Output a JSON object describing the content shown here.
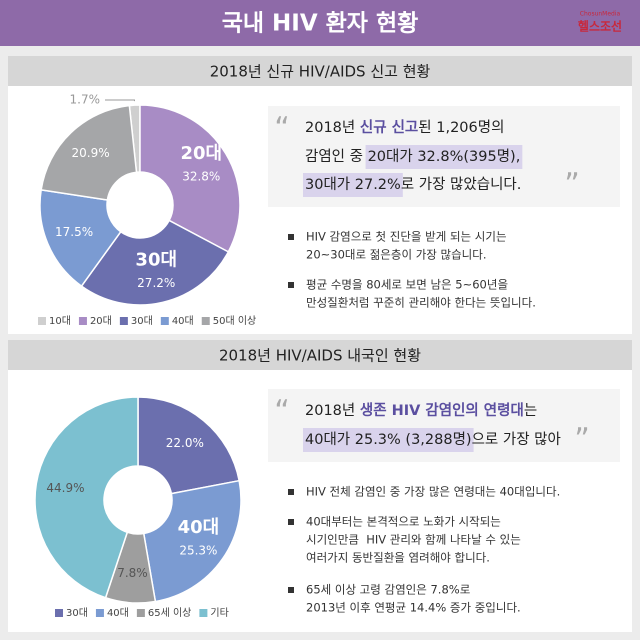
{
  "header": {
    "title": "국내 HIV 환자 현황",
    "logo_small": "ChosunMedia",
    "logo": "헬스조선"
  },
  "chart_data": [
    {
      "type": "pie",
      "donut": true,
      "title": "2018년 신규 HIV/AIDS 신고 현황",
      "categories": [
        "10대",
        "20대",
        "30대",
        "40대",
        "50대 이상"
      ],
      "values": [
        1.7,
        32.8,
        27.2,
        17.5,
        20.9
      ],
      "value_labels": [
        "1.7%",
        "32.8%",
        "27.2%",
        "17.5%",
        "20.9%"
      ],
      "colors": [
        "#cfcfcf",
        "#a88cc5",
        "#6b6fae",
        "#7b9bd2",
        "#a5a6a8"
      ],
      "legend": "bottom"
    },
    {
      "type": "pie",
      "donut": true,
      "title": "2018년 HIV/AIDS 내국인 현황",
      "categories": [
        "30대",
        "40대",
        "65세 이상",
        "기타"
      ],
      "values": [
        22,
        25.3,
        7.8,
        44.9
      ],
      "value_labels": [
        "22.0%",
        "25.3%",
        "7.8%",
        "44.9%"
      ],
      "colors": [
        "#6b6fae",
        "#7b9bd2",
        "#9e9e9e",
        "#7cc0d0"
      ],
      "legend": "bottom"
    }
  ],
  "panels": [
    {
      "quote": [
        [
          {
            "text": "2018년 "
          },
          {
            "text": "신규 신고",
            "mark": "color"
          },
          {
            "text": "된 1,206명의"
          }
        ],
        [
          {
            "text": "감염인 중 "
          },
          {
            "text": "20대가 32.8%(395명),",
            "mark": "box"
          }
        ],
        [
          {
            "text": "30대가 27.2%",
            "mark": "box"
          },
          {
            "text": "로 가장 많았습니다."
          }
        ]
      ],
      "bullets": [
        [
          "HIV 감염으로 첫 진단을 받게 되는 시기는",
          "20~30대로 젊은층이 가장 많습니다."
        ],
        [
          "평균 수명을 80세로 보면 남은 5~60년을",
          "만성질환처럼 꾸준히 관리해야 한다는 뜻입니다."
        ]
      ]
    },
    {
      "quote": [
        [
          {
            "text": "2018년 "
          },
          {
            "text": "생존 HIV 감염인의 연령대",
            "mark": "color"
          },
          {
            "text": "는"
          }
        ],
        [
          {
            "text": "40대가 25.3% (3,288명)",
            "mark": "box"
          },
          {
            "text": "으로 가장 많아"
          }
        ]
      ],
      "bullets": [
        [
          "HIV 전체 감염인 중 가장 많은 연령대는 40대입니다."
        ],
        [
          "40대부터는 본격적으로 노화가 시작되는",
          "시기인만큼  HIV 관리와 함께 나타날 수 있는",
          "여러가지 동반질환을 염려해야 합니다."
        ],
        [
          "65세 이상 고령 감염인은 7.8%로",
          "2013년 이후 연평균 14.4% 증가 중입니다."
        ]
      ]
    }
  ]
}
